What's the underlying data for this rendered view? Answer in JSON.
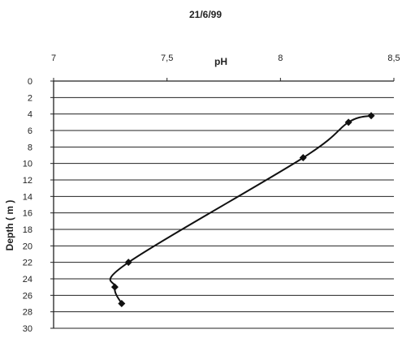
{
  "chart_data": {
    "type": "line",
    "title": "21/6/99",
    "xlabel": "pH",
    "ylabel": "Depth ( m )",
    "x_ticks": [
      "7",
      "7,5",
      "8",
      "8,5"
    ],
    "x_tick_values": [
      7,
      7.5,
      8,
      8.5
    ],
    "y_ticks": [
      "0",
      "2",
      "4",
      "6",
      "8",
      "10",
      "12",
      "14",
      "16",
      "18",
      "20",
      "22",
      "24",
      "26",
      "28",
      "30"
    ],
    "y_tick_values": [
      0,
      2,
      4,
      6,
      8,
      10,
      12,
      14,
      16,
      18,
      20,
      22,
      24,
      26,
      28,
      30
    ],
    "xlim": [
      7,
      8.5
    ],
    "ylim": [
      0,
      30
    ],
    "y_inverted": true,
    "x_axis_position": "top",
    "grid": "horizontal",
    "marker": "diamond",
    "series": [
      {
        "x": [
          8.4,
          8.3,
          8.1,
          7.33,
          7.27,
          7.3
        ],
        "y": [
          4.2,
          5.0,
          9.3,
          22.0,
          25.0,
          27.0
        ]
      }
    ],
    "colors": {
      "line": "#111111",
      "grid": "#222222",
      "background": "#ffffff"
    }
  }
}
